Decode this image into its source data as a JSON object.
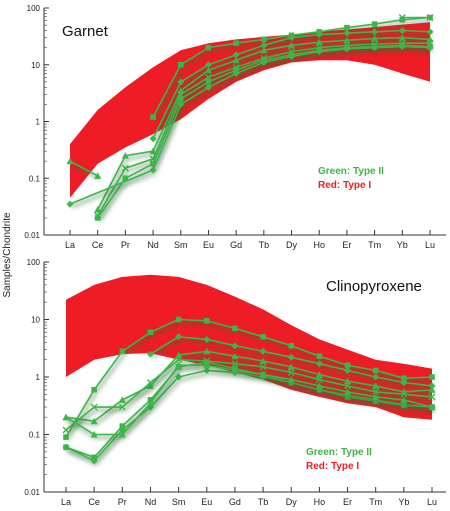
{
  "ylabel": "Samples/Chondrite",
  "colors": {
    "green": "#3db54a",
    "red": "#ee1c25"
  },
  "chart_data": [
    {
      "type": "line",
      "title": "Garnet",
      "ylabel": "Samples/Chondrite",
      "categories": [
        "La",
        "Ce",
        "Pr",
        "Nd",
        "Sm",
        "Eu",
        "Gd",
        "Tb",
        "Dy",
        "Ho",
        "Er",
        "Tm",
        "Yb",
        "Lu"
      ],
      "ylim": [
        0.01,
        100
      ],
      "yscale": "log",
      "yticks": [
        "0.01",
        "0.1",
        "1",
        "10",
        "100"
      ],
      "legend": [
        "Green: Type II",
        "Red: Type I"
      ],
      "legend_position": "right",
      "type_I_band": {
        "x": [
          "La",
          "Ce",
          "Pr",
          "Nd",
          "Sm",
          "Eu",
          "Gd",
          "Tb",
          "Dy",
          "Ho",
          "Er",
          "Tm",
          "Yb",
          "Lu"
        ],
        "upper": [
          0.4,
          1.6,
          4,
          9,
          18,
          24,
          28,
          31,
          34,
          38,
          42,
          46,
          51,
          56
        ],
        "lower": [
          0.045,
          0.18,
          0.35,
          0.6,
          1.1,
          2.5,
          5,
          8,
          11,
          12,
          12,
          10,
          7,
          5
        ]
      },
      "series": [
        {
          "values": [
            null,
            null,
            null,
            1.2,
            10,
            20,
            24,
            28,
            33,
            38,
            45,
            52,
            62,
            68
          ]
        },
        {
          "values": [
            null,
            null,
            null,
            0.5,
            5,
            10,
            15,
            22,
            30,
            34,
            36,
            38,
            40,
            38
          ]
        },
        {
          "values": [
            null,
            0.028,
            0.25,
            0.3,
            3.5,
            8,
            12,
            18,
            22,
            25,
            27,
            29,
            30,
            28
          ]
        },
        {
          "values": [
            null,
            0.022,
            0.15,
            0.22,
            3,
            6,
            9,
            13,
            17,
            20,
            22,
            23,
            24,
            24
          ]
        },
        {
          "values": [
            null,
            0.02,
            0.1,
            0.18,
            2.5,
            5,
            8,
            12,
            15,
            18,
            20,
            21,
            22,
            21
          ]
        },
        {
          "values": [
            0.035,
            null,
            null,
            0.14,
            2,
            4,
            7,
            11,
            14,
            17,
            19,
            20,
            21,
            20
          ]
        },
        {
          "values": [
            0.2,
            0.11,
            null,
            null,
            null,
            null,
            null,
            null,
            null,
            null,
            null,
            null,
            null,
            null
          ]
        },
        {
          "values": [
            null,
            null,
            null,
            null,
            null,
            null,
            null,
            null,
            null,
            null,
            null,
            null,
            68,
            68
          ]
        }
      ]
    },
    {
      "type": "line",
      "title": "Clinopyroxene",
      "ylabel": "Samples/Chondrite",
      "categories": [
        "La",
        "Ce",
        "Pr",
        "Nd",
        "Sm",
        "Eu",
        "Gd",
        "Tb",
        "Dy",
        "Ho",
        "Er",
        "Tm",
        "Yb",
        "Lu"
      ],
      "ylim": [
        0.01,
        100
      ],
      "yscale": "log",
      "yticks": [
        "0.01",
        "0.1",
        "1",
        "10",
        "100"
      ],
      "legend": [
        "Green: Type II",
        "Red: Type I"
      ],
      "legend_position": "bottom-right",
      "type_I_band": {
        "x": [
          "La",
          "Ce",
          "Pr",
          "Nd",
          "Sm",
          "Eu",
          "Gd",
          "Tb",
          "Dy",
          "Ho",
          "Er",
          "Tm",
          "Yb",
          "Lu"
        ],
        "upper": [
          22,
          40,
          55,
          60,
          55,
          40,
          25,
          15,
          8,
          4.5,
          3,
          2,
          1.7,
          1.4
        ],
        "lower": [
          1.0,
          2.0,
          2.5,
          2.6,
          2.0,
          1.6,
          1.2,
          0.9,
          0.6,
          0.45,
          0.35,
          0.3,
          0.2,
          0.18
        ]
      },
      "series": [
        {
          "values": [
            0.09,
            0.6,
            2.8,
            6,
            10,
            9.5,
            7,
            5,
            3.5,
            2.3,
            1.6,
            1.3,
            0.95,
            1.0
          ]
        },
        {
          "values": [
            null,
            null,
            null,
            2.5,
            5,
            4.5,
            3.5,
            2.8,
            2.2,
            1.7,
            1.3,
            1.0,
            0.8,
            0.7
          ]
        },
        {
          "values": [
            0.2,
            0.17,
            0.4,
            0.7,
            2.4,
            2.8,
            2.3,
            1.9,
            1.5,
            1.1,
            0.85,
            0.7,
            0.55,
            0.6
          ]
        },
        {
          "values": [
            0.12,
            0.3,
            0.3,
            0.8,
            2.0,
            1.9,
            1.7,
            1.5,
            1.2,
            0.9,
            0.7,
            0.55,
            0.5,
            0.45
          ]
        },
        {
          "values": [
            0.06,
            0.04,
            0.14,
            0.4,
            1.5,
            1.8,
            1.4,
            1.1,
            0.8,
            0.6,
            0.45,
            0.38,
            0.32,
            0.3
          ]
        },
        {
          "values": [
            0.06,
            0.035,
            0.12,
            0.3,
            1.0,
            1.3,
            1.2,
            1.0,
            0.8,
            0.6,
            0.48,
            0.4,
            0.33,
            0.3
          ]
        },
        {
          "values": [
            0.2,
            0.1,
            0.1,
            0.35,
            1.6,
            1.6,
            1.3,
            1.1,
            0.9,
            0.7,
            0.55,
            0.45,
            0.4,
            0.3
          ]
        }
      ]
    }
  ]
}
